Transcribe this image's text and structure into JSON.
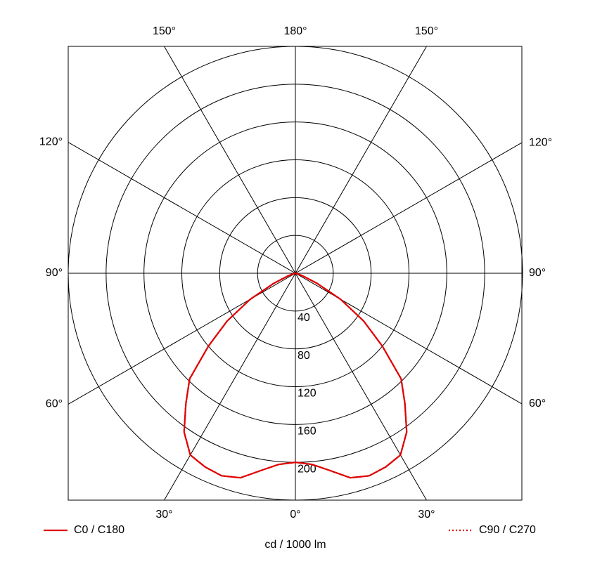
{
  "chart_data": {
    "type": "polar",
    "x": [
      -90,
      -85,
      -80,
      -75,
      -70,
      -65,
      -60,
      -55,
      -50,
      -45,
      -40,
      -35,
      -30,
      -25,
      -20,
      -15,
      -10,
      -5,
      0,
      5,
      10,
      15,
      20,
      25,
      30,
      35,
      40,
      45,
      50,
      55,
      60,
      65,
      70,
      75,
      80,
      85,
      90
    ],
    "series": [
      {
        "name": "C0 / C180",
        "color": "#e00000",
        "style": "solid",
        "values": [
          0,
          0,
          1,
          3,
          8,
          25,
          55,
          88,
          120,
          158,
          180,
          205,
          222,
          226,
          228,
          224,
          212,
          203,
          200,
          203,
          212,
          224,
          228,
          226,
          222,
          205,
          180,
          158,
          120,
          88,
          55,
          25,
          8,
          3,
          1,
          0,
          0
        ]
      },
      {
        "name": "C90 / C270",
        "color": "#e00000",
        "style": "dotted",
        "values": [
          0,
          0,
          1,
          3,
          8,
          25,
          55,
          88,
          120,
          158,
          180,
          205,
          222,
          226,
          228,
          224,
          212,
          203,
          200,
          203,
          212,
          224,
          228,
          226,
          222,
          205,
          180,
          158,
          120,
          88,
          55,
          25,
          8,
          3,
          1,
          0,
          0
        ]
      }
    ],
    "rlim": [
      0,
      240
    ],
    "rticks": [
      40,
      80,
      120,
      160,
      200
    ],
    "thetaticks": [
      {
        "value": 0,
        "label": "0°"
      },
      {
        "value": 30,
        "label": "30°"
      },
      {
        "value": 60,
        "label": "60°"
      },
      {
        "value": 90,
        "label": "90°"
      },
      {
        "value": 120,
        "label": "120°"
      },
      {
        "value": 150,
        "label": "150°"
      },
      {
        "value": 180,
        "label": "180°"
      }
    ],
    "xlabel": "cd / 1000 lm"
  }
}
